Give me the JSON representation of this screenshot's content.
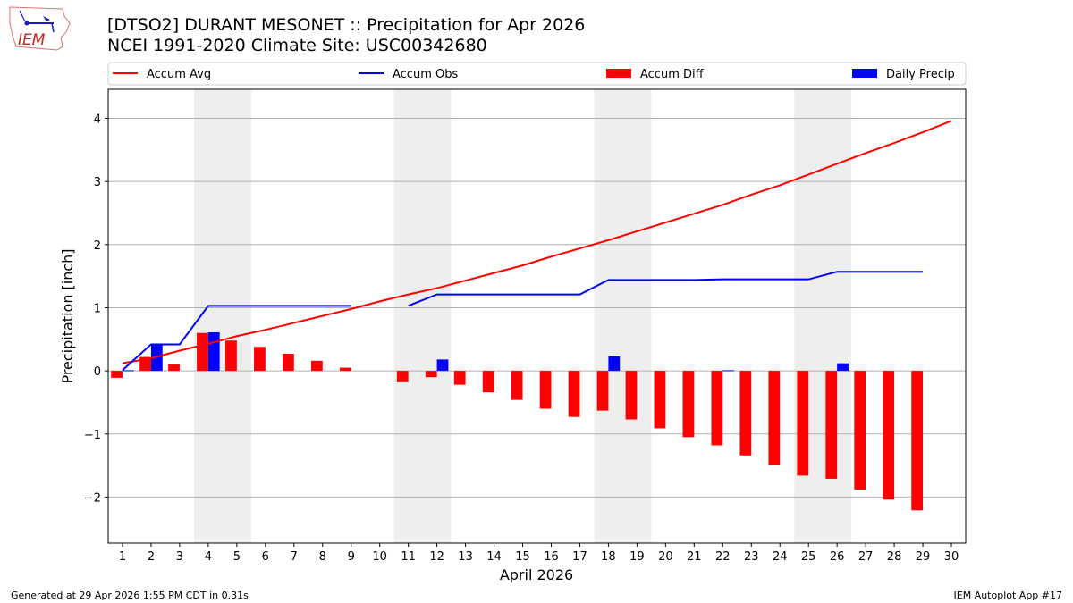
{
  "header": {
    "title": "[DTSO2] DURANT MESONET :: Precipitation for Apr 2026",
    "subtitle": "NCEI 1991-2020 Climate Site: USC00342680",
    "logo_text": "IEM"
  },
  "footer": {
    "left": "Generated at 29 Apr 2026 1:55 PM CDT in 0.31s",
    "right": "IEM Autoplot App #17"
  },
  "chart_data": {
    "type": "bar",
    "xlabel": "April 2026",
    "ylabel": "Precipitation [inch]",
    "xlim": [
      0.5,
      30.5
    ],
    "ylim": [
      -2.73,
      4.46
    ],
    "yticks": [
      -2,
      -1,
      0,
      1,
      2,
      3,
      4
    ],
    "ytick_labels": [
      "−2",
      "−1",
      "0",
      "1",
      "2",
      "3",
      "4"
    ],
    "x": [
      1,
      2,
      3,
      4,
      5,
      6,
      7,
      8,
      9,
      10,
      11,
      12,
      13,
      14,
      15,
      16,
      17,
      18,
      19,
      20,
      21,
      22,
      23,
      24,
      25,
      26,
      27,
      28,
      29,
      30
    ],
    "grid": "horizontal",
    "legend_placement": "top",
    "weekend_shading": [
      [
        3.5,
        5.5
      ],
      [
        10.5,
        12.5
      ],
      [
        17.5,
        19.5
      ],
      [
        24.5,
        26.5
      ]
    ],
    "colors": {
      "avg": "#ff0000",
      "obs": "#0000ff",
      "diff": "#ff0000",
      "daily": "#0000ff",
      "shade": "#eeeeee"
    },
    "series": [
      {
        "name": "Accum Avg",
        "kind": "line",
        "values": [
          0.12,
          0.2,
          0.32,
          0.43,
          0.55,
          0.65,
          0.76,
          0.87,
          0.98,
          1.1,
          1.21,
          1.31,
          1.43,
          1.55,
          1.67,
          1.81,
          1.94,
          2.07,
          2.21,
          2.35,
          2.49,
          2.63,
          2.79,
          2.94,
          3.11,
          3.28,
          3.45,
          3.61,
          3.78,
          3.96
        ]
      },
      {
        "name": "Accum Obs",
        "kind": "line",
        "values": [
          0.01,
          0.42,
          0.42,
          1.03,
          1.03,
          1.03,
          1.03,
          1.03,
          1.03,
          null,
          1.03,
          1.21,
          1.21,
          1.21,
          1.21,
          1.21,
          1.21,
          1.44,
          1.44,
          1.44,
          1.44,
          1.45,
          1.45,
          1.45,
          1.45,
          1.57,
          1.57,
          1.57,
          1.57,
          null
        ]
      },
      {
        "name": "Accum Diff",
        "kind": "bar",
        "values": [
          -0.11,
          0.22,
          0.1,
          0.6,
          0.48,
          0.38,
          0.27,
          0.16,
          0.05,
          null,
          -0.18,
          -0.1,
          -0.22,
          -0.34,
          -0.46,
          -0.6,
          -0.73,
          -0.63,
          -0.77,
          -0.91,
          -1.05,
          -1.18,
          -1.34,
          -1.49,
          -1.66,
          -1.71,
          -1.88,
          -2.04,
          -2.21,
          null
        ]
      },
      {
        "name": "Daily Precip",
        "kind": "bar",
        "values": [
          0.01,
          0.42,
          0,
          0.61,
          0,
          0,
          0,
          0,
          0,
          null,
          0,
          0.18,
          0,
          0,
          0,
          0,
          0,
          0.23,
          0,
          0,
          0,
          0.01,
          0,
          0,
          0,
          0.12,
          0,
          0,
          0,
          null
        ]
      }
    ]
  }
}
